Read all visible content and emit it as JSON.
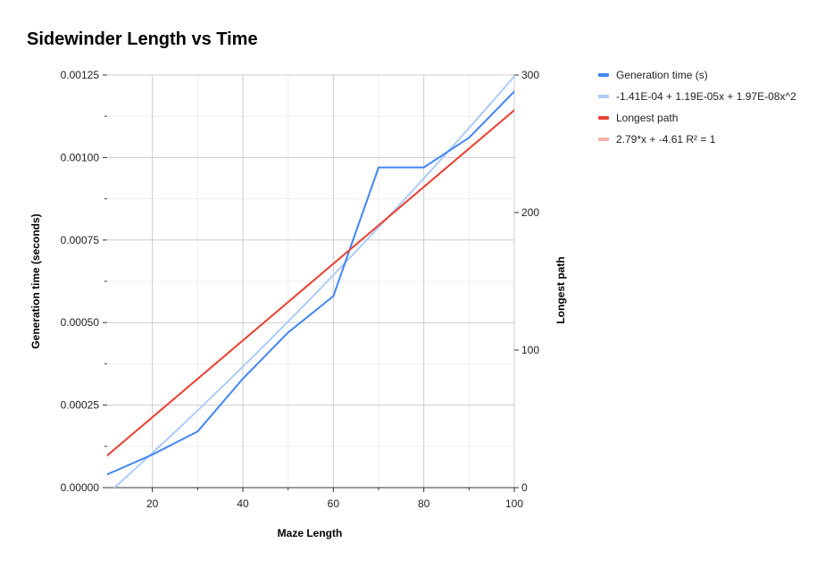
{
  "chart_data": {
    "type": "line",
    "title": "Sidewinder Length vs Time",
    "xlabel": "Maze Length",
    "ylabel": "Generation time (seconds)",
    "y2label": "Longest path",
    "xlim": [
      10,
      100
    ],
    "ylim": [
      0,
      0.00125
    ],
    "y2lim": [
      0,
      300
    ],
    "xticks": [
      20,
      40,
      60,
      80,
      100
    ],
    "xtick_labels": [
      "20",
      "40",
      "60",
      "80",
      "100"
    ],
    "yticks": [
      0,
      0.00025,
      0.0005,
      0.00075,
      0.001,
      0.00125
    ],
    "ytick_labels": [
      "0.00000",
      "0.00025",
      "0.00050",
      "0.00075",
      "0.00100",
      "0.00125"
    ],
    "y2ticks": [
      0,
      100,
      200,
      300
    ],
    "y2tick_labels": [
      "0",
      "100",
      "200",
      "300"
    ],
    "grid": true,
    "legend_position": "right",
    "series": [
      {
        "name": "Generation time (s)",
        "axis": "left",
        "kind": "line",
        "color": "#4285f4",
        "x": [
          10,
          20,
          30,
          40,
          50,
          60,
          70,
          80,
          90,
          100
        ],
        "y": [
          4e-05,
          0.0001,
          0.00017,
          0.00033,
          0.00047,
          0.00058,
          0.00097,
          0.00097,
          0.00106,
          0.0012
        ]
      },
      {
        "name": "-1.41E-04 + 1.19E-05x + 1.97E-08x^2",
        "axis": "left",
        "kind": "trendline-poly",
        "color": "#aecbfa",
        "coefficients": [
          -0.000141,
          1.19e-05,
          1.97e-08
        ]
      },
      {
        "name": "Longest path",
        "axis": "right",
        "kind": "line",
        "color": "#ea4335",
        "x": [
          10,
          100
        ],
        "y": [
          23.3,
          274.4
        ]
      },
      {
        "name": "2.79*x + -4.61 R² = 1",
        "axis": "right",
        "kind": "trendline-linear",
        "color": "#f6aea9",
        "coefficients": [
          -4.61,
          2.79
        ]
      }
    ]
  }
}
